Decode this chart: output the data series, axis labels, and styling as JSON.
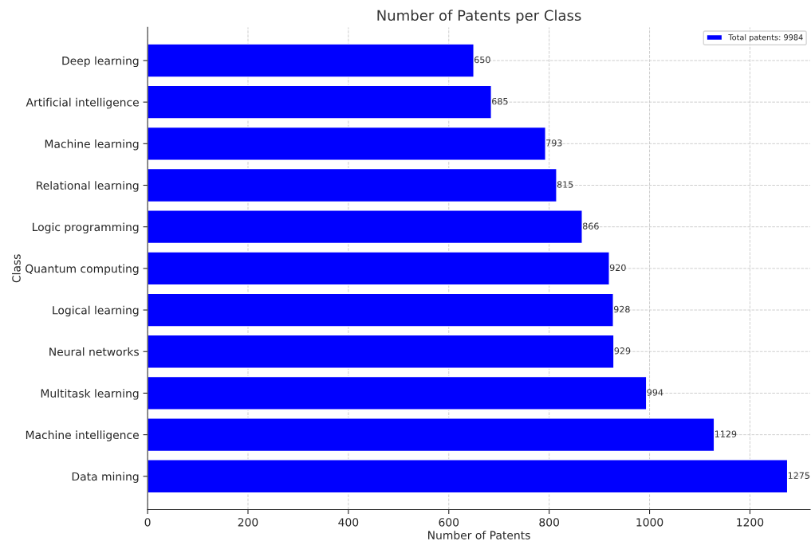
{
  "chart_data": {
    "type": "bar",
    "orientation": "horizontal",
    "title": "Number of Patents per Class",
    "xlabel": "Number of Patents",
    "ylabel": "Class",
    "categories": [
      "Deep learning",
      "Artificial intelligence",
      "Machine learning",
      "Relational learning",
      "Logic programming",
      "Quantum computing",
      "Logical learning",
      "Neural networks",
      "Multitask learning",
      "Machine intelligence",
      "Data mining"
    ],
    "series": [
      {
        "name": "Total patents: 9984",
        "color": "#0000ff",
        "values": [
          650,
          685,
          793,
          815,
          866,
          920,
          928,
          929,
          994,
          1129,
          1275
        ]
      }
    ],
    "xlim": [
      0,
      1320
    ],
    "xticks": [
      0,
      200,
      400,
      600,
      800,
      1000,
      1200
    ],
    "data_labels": true,
    "grid": true,
    "legend": "top right"
  }
}
